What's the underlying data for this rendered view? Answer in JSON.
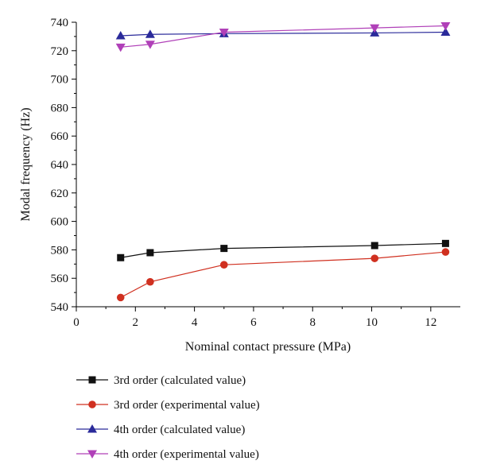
{
  "chart_data": {
    "type": "line",
    "title": "",
    "xlabel": "Nominal contact pressure (MPa)",
    "ylabel": "Modal frequency (Hz)",
    "xlim": [
      0,
      13
    ],
    "ylim": [
      540,
      740
    ],
    "x_ticks": [
      "0",
      "2",
      "4",
      "6",
      "8",
      "10",
      "12"
    ],
    "y_ticks": [
      "540",
      "560",
      "580",
      "600",
      "620",
      "640",
      "660",
      "680",
      "700",
      "720",
      "740"
    ],
    "grid": false,
    "legend_position": "bottom",
    "series": [
      {
        "name": "3rd order (calculated value)",
        "color": "#111111",
        "marker": "square",
        "x": [
          1.5,
          2.5,
          5.0,
          10.1,
          12.5
        ],
        "y": [
          574.5,
          578,
          581,
          583,
          584.5
        ]
      },
      {
        "name": "3rd order (experimental value)",
        "color": "#d03020",
        "marker": "circle",
        "x": [
          1.5,
          2.5,
          5.0,
          10.1,
          12.5
        ],
        "y": [
          546.5,
          557.5,
          569.5,
          574,
          578.5
        ]
      },
      {
        "name": "4th order (calculated value)",
        "color": "#2a2a9a",
        "marker": "triangle-up",
        "x": [
          1.5,
          2.5,
          5.0,
          10.1,
          12.5
        ],
        "y": [
          730.5,
          731.5,
          732,
          732.5,
          733
        ]
      },
      {
        "name": "4th order (experimental value)",
        "color": "#b040b8",
        "marker": "triangle-down",
        "x": [
          1.5,
          2.5,
          5.0,
          10.1,
          12.5
        ],
        "y": [
          722.5,
          724.5,
          733,
          736,
          737.5
        ]
      }
    ]
  }
}
